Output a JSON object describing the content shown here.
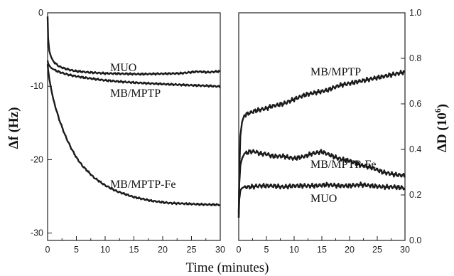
{
  "chart_data": [
    {
      "type": "line",
      "panel": "left",
      "xlabel": "Time (minutes)",
      "ylabel": "Δf (Hz)",
      "xlim": [
        0,
        30
      ],
      "ylim": [
        -31,
        0
      ],
      "xticks": [
        0,
        5,
        10,
        15,
        20,
        25,
        30
      ],
      "yticks": [
        0,
        -10,
        -20,
        -30
      ],
      "grid": false,
      "series": [
        {
          "name": "MUO",
          "x": [
            0,
            0.1,
            0.3,
            0.6,
            1,
            1.5,
            2,
            3,
            4,
            5,
            7,
            10,
            13,
            16,
            20,
            23,
            26,
            28,
            30
          ],
          "y": [
            -0.5,
            -3.5,
            -5.2,
            -6.0,
            -6.6,
            -7.0,
            -7.3,
            -7.6,
            -7.8,
            -7.95,
            -8.1,
            -8.25,
            -8.3,
            -8.35,
            -8.3,
            -8.25,
            -8.0,
            -8.1,
            -7.95
          ]
        },
        {
          "name": "MB/MPTP",
          "x": [
            0,
            0.1,
            0.3,
            0.6,
            1,
            1.5,
            2,
            3,
            4,
            5,
            7,
            10,
            13,
            16,
            20,
            23,
            26,
            28,
            30
          ],
          "y": [
            -6.5,
            -6.9,
            -7.2,
            -7.5,
            -7.7,
            -7.9,
            -8.05,
            -8.3,
            -8.5,
            -8.65,
            -8.9,
            -9.2,
            -9.4,
            -9.55,
            -9.7,
            -9.8,
            -9.9,
            -9.95,
            -10.05
          ]
        },
        {
          "name": "MB/MPTP-Fe",
          "x": [
            0,
            0.1,
            0.3,
            0.6,
            1,
            1.5,
            2,
            3,
            4,
            5,
            6,
            8,
            10,
            12,
            15,
            18,
            21,
            24,
            27,
            30
          ],
          "y": [
            -7.0,
            -7.8,
            -9.0,
            -10.3,
            -11.8,
            -13.2,
            -14.5,
            -16.6,
            -18.3,
            -19.7,
            -20.8,
            -22.4,
            -23.5,
            -24.3,
            -25.1,
            -25.6,
            -25.9,
            -26.0,
            -26.1,
            -26.15
          ]
        }
      ],
      "annotations": [
        "MUO",
        "MB/MPTP",
        "MB/MPTP-Fe"
      ]
    },
    {
      "type": "line",
      "panel": "right",
      "xlabel": "Time (minutes)",
      "ylabel": "ΔD (10",
      "ylabel_sup": "6",
      "ylabel_close": ")",
      "xlim": [
        0,
        30
      ],
      "ylim": [
        0,
        1.0
      ],
      "xticks": [
        0,
        5,
        10,
        15,
        20,
        25,
        30
      ],
      "yticks": [
        "0.0",
        "0.2",
        "0.4",
        "0.6",
        "0.8",
        "1.0"
      ],
      "grid": false,
      "series": [
        {
          "name": "MB/MPTP",
          "x": [
            0,
            0.1,
            0.3,
            0.6,
            1,
            2,
            3,
            4,
            5,
            6,
            8,
            10,
            12,
            14,
            16,
            18,
            20,
            22,
            24,
            26,
            28,
            29,
            30
          ],
          "y": [
            0.1,
            0.3,
            0.46,
            0.52,
            0.55,
            0.56,
            0.57,
            0.575,
            0.58,
            0.59,
            0.6,
            0.62,
            0.64,
            0.65,
            0.66,
            0.68,
            0.69,
            0.7,
            0.71,
            0.72,
            0.73,
            0.735,
            0.74
          ]
        },
        {
          "name": "MB/MPTP-Fe",
          "x": [
            0,
            0.1,
            0.3,
            0.6,
            1,
            2,
            3,
            4,
            5,
            6,
            8,
            10,
            12,
            13,
            15,
            16,
            18,
            20,
            22,
            24,
            26,
            28,
            30
          ],
          "y": [
            0.12,
            0.25,
            0.33,
            0.36,
            0.38,
            0.39,
            0.39,
            0.38,
            0.38,
            0.37,
            0.37,
            0.36,
            0.37,
            0.38,
            0.39,
            0.38,
            0.36,
            0.35,
            0.33,
            0.32,
            0.3,
            0.29,
            0.285
          ]
        },
        {
          "name": "MUO",
          "x": [
            0,
            0.1,
            0.3,
            0.6,
            1,
            2,
            4,
            6,
            8,
            10,
            12,
            14,
            16,
            18,
            20,
            22,
            24,
            26,
            28,
            30
          ],
          "y": [
            0.1,
            0.18,
            0.22,
            0.23,
            0.235,
            0.235,
            0.24,
            0.24,
            0.235,
            0.24,
            0.24,
            0.24,
            0.245,
            0.24,
            0.24,
            0.245,
            0.24,
            0.235,
            0.235,
            0.23
          ]
        }
      ],
      "annotations": [
        "MB/MPTP",
        "MB/MPTP-Fe",
        "MUO"
      ]
    }
  ]
}
